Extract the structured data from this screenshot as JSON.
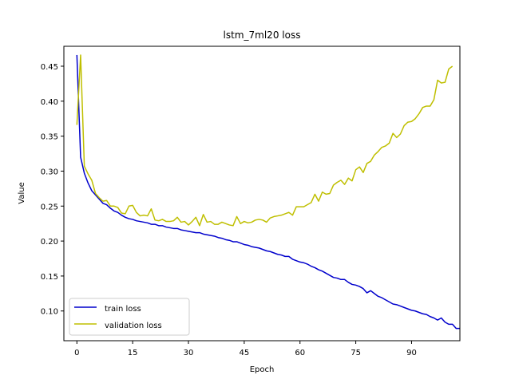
{
  "chart_data": {
    "type": "line",
    "title": "lstm_7ml20 loss",
    "xlabel": "Epoch",
    "ylabel": "Value",
    "xlim": [
      -3.5,
      103
    ],
    "ylim": [
      0.0575,
      0.4785
    ],
    "xticks": [
      0,
      15,
      30,
      45,
      60,
      75,
      90
    ],
    "yticks": [
      0.1,
      0.15,
      0.2,
      0.25,
      0.3,
      0.35,
      0.4,
      0.45
    ],
    "xtick_labels": [
      "0",
      "15",
      "30",
      "45",
      "60",
      "75",
      "90"
    ],
    "ytick_labels": [
      "0.10",
      "0.15",
      "0.20",
      "0.25",
      "0.30",
      "0.35",
      "0.40",
      "0.45"
    ],
    "grid": false,
    "legend_position": "lower-left",
    "series": [
      {
        "name": "train loss",
        "color": "#0000cc",
        "values": [
          0.466,
          0.32,
          0.297,
          0.283,
          0.272,
          0.266,
          0.26,
          0.254,
          0.252,
          0.247,
          0.243,
          0.241,
          0.237,
          0.234,
          0.232,
          0.231,
          0.229,
          0.228,
          0.227,
          0.226,
          0.224,
          0.224,
          0.222,
          0.222,
          0.22,
          0.219,
          0.218,
          0.218,
          0.216,
          0.215,
          0.214,
          0.213,
          0.212,
          0.212,
          0.21,
          0.209,
          0.208,
          0.207,
          0.205,
          0.204,
          0.202,
          0.201,
          0.199,
          0.199,
          0.197,
          0.195,
          0.194,
          0.192,
          0.191,
          0.19,
          0.188,
          0.186,
          0.185,
          0.183,
          0.181,
          0.18,
          0.178,
          0.178,
          0.174,
          0.172,
          0.17,
          0.169,
          0.167,
          0.164,
          0.162,
          0.159,
          0.157,
          0.154,
          0.151,
          0.148,
          0.147,
          0.145,
          0.145,
          0.141,
          0.138,
          0.137,
          0.135,
          0.132,
          0.126,
          0.129,
          0.125,
          0.121,
          0.119,
          0.116,
          0.113,
          0.11,
          0.109,
          0.107,
          0.105,
          0.103,
          0.101,
          0.1,
          0.098,
          0.096,
          0.095,
          0.092,
          0.09,
          0.087,
          0.09,
          0.084,
          0.081,
          0.081,
          0.075,
          0.075
        ]
      },
      {
        "name": "validation loss",
        "color": "#bfbf00",
        "values": [
          0.366,
          0.466,
          0.307,
          0.296,
          0.287,
          0.268,
          0.262,
          0.257,
          0.258,
          0.25,
          0.25,
          0.248,
          0.24,
          0.239,
          0.25,
          0.251,
          0.241,
          0.236,
          0.237,
          0.236,
          0.246,
          0.23,
          0.229,
          0.231,
          0.228,
          0.228,
          0.229,
          0.234,
          0.227,
          0.228,
          0.223,
          0.228,
          0.234,
          0.222,
          0.238,
          0.227,
          0.228,
          0.224,
          0.224,
          0.227,
          0.225,
          0.223,
          0.222,
          0.235,
          0.225,
          0.228,
          0.226,
          0.227,
          0.23,
          0.231,
          0.23,
          0.227,
          0.233,
          0.235,
          0.236,
          0.237,
          0.239,
          0.241,
          0.237,
          0.249,
          0.249,
          0.249,
          0.252,
          0.255,
          0.267,
          0.257,
          0.27,
          0.267,
          0.268,
          0.28,
          0.284,
          0.287,
          0.281,
          0.29,
          0.286,
          0.302,
          0.306,
          0.298,
          0.311,
          0.314,
          0.323,
          0.328,
          0.334,
          0.336,
          0.34,
          0.354,
          0.348,
          0.353,
          0.365,
          0.37,
          0.371,
          0.375,
          0.382,
          0.391,
          0.393,
          0.393,
          0.402,
          0.43,
          0.426,
          0.427,
          0.446,
          0.45
        ]
      }
    ]
  }
}
